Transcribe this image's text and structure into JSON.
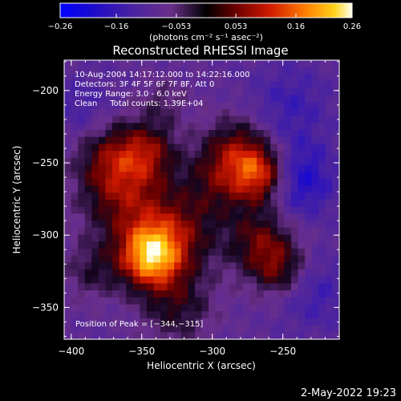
{
  "chart_data": {
    "type": "heatmap",
    "title": "Reconstructed RHESSI Image",
    "xlabel": "Heliocentric X (arcsec)",
    "ylabel": "Heliocentric Y (arcsec)",
    "xlim": [
      -405,
      -210
    ],
    "ylim": [
      -372,
      -179
    ],
    "x_ticks": [
      -400,
      -350,
      -300,
      -250
    ],
    "x_tick_labels": [
      "−400",
      "−350",
      "−300",
      "−250"
    ],
    "y_ticks": [
      -200,
      -250,
      -300,
      -350
    ],
    "y_tick_labels": [
      "−200",
      "−250",
      "−300",
      "−350"
    ],
    "colorbar": {
      "min": -0.26,
      "max": 0.26,
      "ticks": [
        -0.26,
        -0.16,
        -0.053,
        0.053,
        0.16,
        0.26
      ],
      "tick_labels": [
        "−0.26",
        "−0.16",
        "−0.053",
        "0.053",
        "0.16",
        "0.26"
      ],
      "units_label": "(photons cm⁻² s⁻¹ asec⁻²)"
    },
    "annotations": [
      "10-Aug-2004 14:17:12.000 to 14:22:16.000",
      "Detectors: 3F 4F 5F 6F 7F 8F, Att 0",
      "Energy Range: 3.0 - 6.0 keV",
      "Clean     Total counts: 1.39E+04"
    ],
    "peak_label": "Position of Peak = [−344,−315]",
    "peak": [
      -344,
      -315
    ],
    "blobs": [
      {
        "x": -344,
        "y": -315,
        "sigma": 15,
        "amp": 0.26
      },
      {
        "x": -325,
        "y": -300,
        "sigma": 20,
        "amp": 0.12
      },
      {
        "x": -360,
        "y": -278,
        "sigma": 22,
        "amp": 0.12
      },
      {
        "x": -370,
        "y": -248,
        "sigma": 18,
        "amp": 0.13
      },
      {
        "x": -345,
        "y": -242,
        "sigma": 14,
        "amp": 0.11
      },
      {
        "x": -265,
        "y": -258,
        "sigma": 14,
        "amp": 0.2
      },
      {
        "x": -282,
        "y": -240,
        "sigma": 16,
        "amp": 0.11
      },
      {
        "x": -295,
        "y": -262,
        "sigma": 18,
        "amp": 0.1
      },
      {
        "x": -265,
        "y": -305,
        "sigma": 17,
        "amp": 0.13
      },
      {
        "x": -252,
        "y": -325,
        "sigma": 13,
        "amp": 0.1
      },
      {
        "x": -325,
        "y": -350,
        "sigma": 18,
        "amp": 0.09
      },
      {
        "x": -385,
        "y": -325,
        "sigma": 14,
        "amp": 0.07
      },
      {
        "x": -335,
        "y": -208,
        "sigma": 12,
        "amp": 0.05
      },
      {
        "x": -240,
        "y": -262,
        "sigma": 18,
        "amp": -0.12
      },
      {
        "x": -245,
        "y": -210,
        "sigma": 20,
        "amp": -0.06
      },
      {
        "x": -392,
        "y": -212,
        "sigma": 15,
        "amp": -0.05
      },
      {
        "x": -228,
        "y": -340,
        "sigma": 18,
        "amp": -0.06
      }
    ]
  },
  "footer": {
    "date": "2-May-2022 19:23"
  }
}
